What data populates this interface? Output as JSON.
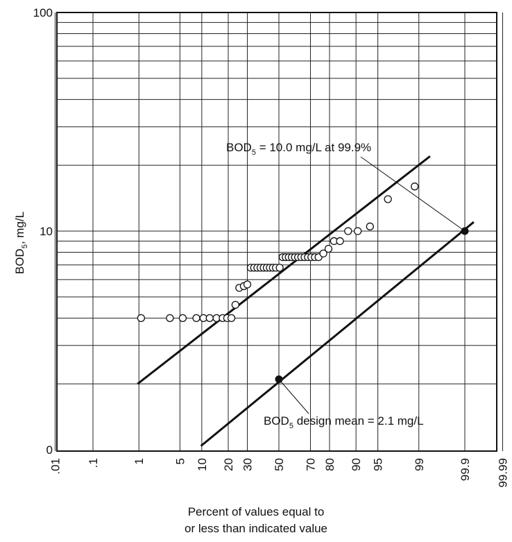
{
  "chart_data": {
    "type": "scatter",
    "x_scale": "normal-probability",
    "y_scale": "log",
    "y_ticks": [
      {
        "label": "100",
        "value": 100
      },
      {
        "label": "10",
        "value": 10
      },
      {
        "label": "0",
        "value": 1
      }
    ],
    "x_ticks": [
      {
        "label": ".01",
        "value": 0.01
      },
      {
        "label": ".1",
        "value": 0.1
      },
      {
        "label": "1",
        "value": 1
      },
      {
        "label": "5",
        "value": 5
      },
      {
        "label": "10",
        "value": 10
      },
      {
        "label": "20",
        "value": 20
      },
      {
        "label": "30",
        "value": 30
      },
      {
        "label": "50",
        "value": 50
      },
      {
        "label": "70",
        "value": 70
      },
      {
        "label": "80",
        "value": 80
      },
      {
        "label": "90",
        "value": 90
      },
      {
        "label": "95",
        "value": 95
      },
      {
        "label": "99",
        "value": 99
      },
      {
        "label": "99.9",
        "value": 99.9
      },
      {
        "label": "99.99",
        "value": 99.99
      }
    ],
    "ylabel_main": "BOD",
    "ylabel_sub": "5",
    "ylabel_rest": ", mg/L",
    "xlabel_line1": "Percent of values equal to",
    "xlabel_line2": "or less than indicated value",
    "points": [
      {
        "x": 1.1,
        "y": 4.0
      },
      {
        "x": 3.5,
        "y": 4.0
      },
      {
        "x": 5.5,
        "y": 4.0
      },
      {
        "x": 8.5,
        "y": 4.0
      },
      {
        "x": 10.5,
        "y": 4.0
      },
      {
        "x": 12.5,
        "y": 4.0
      },
      {
        "x": 15,
        "y": 4.0
      },
      {
        "x": 17.5,
        "y": 4.0
      },
      {
        "x": 19.5,
        "y": 4.0
      },
      {
        "x": 21.5,
        "y": 4.0
      },
      {
        "x": 23.5,
        "y": 4.6
      },
      {
        "x": 25.5,
        "y": 5.5
      },
      {
        "x": 28,
        "y": 5.6
      },
      {
        "x": 30,
        "y": 5.7
      },
      {
        "x": 32,
        "y": 6.8
      },
      {
        "x": 34,
        "y": 6.8
      },
      {
        "x": 36,
        "y": 6.8
      },
      {
        "x": 38,
        "y": 6.8
      },
      {
        "x": 40,
        "y": 6.8
      },
      {
        "x": 42,
        "y": 6.8
      },
      {
        "x": 44,
        "y": 6.8
      },
      {
        "x": 46,
        "y": 6.8
      },
      {
        "x": 48,
        "y": 6.8
      },
      {
        "x": 50.5,
        "y": 6.8
      },
      {
        "x": 52.5,
        "y": 7.6
      },
      {
        "x": 54.5,
        "y": 7.6
      },
      {
        "x": 56.5,
        "y": 7.6
      },
      {
        "x": 58.5,
        "y": 7.6
      },
      {
        "x": 60.5,
        "y": 7.6
      },
      {
        "x": 62.5,
        "y": 7.6
      },
      {
        "x": 64.5,
        "y": 7.6
      },
      {
        "x": 66.5,
        "y": 7.6
      },
      {
        "x": 68.5,
        "y": 7.6
      },
      {
        "x": 70.5,
        "y": 7.6
      },
      {
        "x": 72.5,
        "y": 7.6
      },
      {
        "x": 74.5,
        "y": 7.6
      },
      {
        "x": 77,
        "y": 7.9
      },
      {
        "x": 79.5,
        "y": 8.3
      },
      {
        "x": 82,
        "y": 9.0
      },
      {
        "x": 84.5,
        "y": 9.0
      },
      {
        "x": 87.5,
        "y": 10.0
      },
      {
        "x": 90.5,
        "y": 10.0
      },
      {
        "x": 93.5,
        "y": 10.5
      },
      {
        "x": 96.5,
        "y": 14.0
      },
      {
        "x": 98.8,
        "y": 16.0
      }
    ],
    "fit_lines": [
      {
        "from": {
          "x": 0.94,
          "y": 2.0
        },
        "to": {
          "x": 99.4,
          "y": 22.0
        }
      },
      {
        "from": {
          "x": 9.75,
          "y": 1.04
        },
        "to": {
          "x": 99.94,
          "y": 11.0
        }
      }
    ],
    "highlight_points": [
      {
        "x": 50,
        "y": 2.1
      },
      {
        "x": 99.9,
        "y": 10.0
      }
    ],
    "annotations": [
      {
        "text_main": "BOD",
        "text_sub": "5",
        "text_rest": " = 10.0 mg/L at 99.9%",
        "target": {
          "x": 99.9,
          "y": 10.0
        }
      },
      {
        "text_main": "BOD",
        "text_sub": "5",
        "text_rest": " design mean = 2.1 mg/L",
        "target": {
          "x": 50,
          "y": 2.1
        }
      }
    ]
  }
}
